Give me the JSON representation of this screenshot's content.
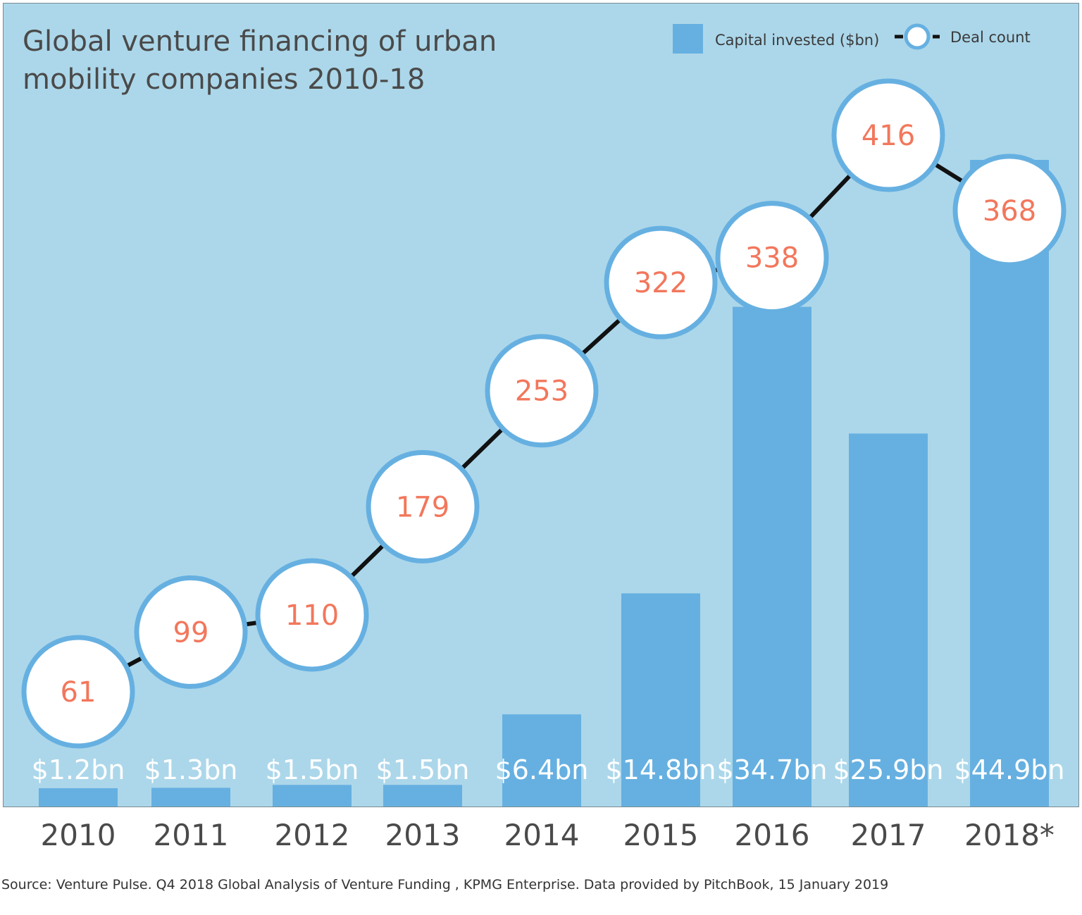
{
  "title_lines": [
    "Global venture financing of urban",
    "mobility companies 2010-18"
  ],
  "legend": {
    "bars_label": "Capital invested ($bn)",
    "line_label": "Deal count"
  },
  "source": "Source: Venture Pulse. Q4 2018 Global Analysis of Venture Funding , KPMG Enterprise. Data provided by PitchBook, 15 January 2019",
  "colors": {
    "background": "#acd7ea",
    "bar": "#66b0e1",
    "bubble_ring": "#66b0e1",
    "bubble_fill": "#ffffff",
    "bubble_text": "#f2775c",
    "line": "#111111",
    "bar_label": "#ffffff"
  },
  "chart_data": {
    "type": "bar",
    "title": "Global venture financing of urban mobility companies 2010-18",
    "categories": [
      "2010",
      "2011",
      "2012",
      "2013",
      "2014",
      "2015",
      "2016",
      "2017",
      "2018*"
    ],
    "series": [
      {
        "name": "Capital invested ($bn)",
        "type": "bar",
        "values": [
          1.2,
          1.3,
          1.5,
          1.5,
          6.4,
          14.8,
          34.7,
          25.9,
          44.9
        ],
        "labels": [
          "$1.2bn",
          "$1.3bn",
          "$1.5bn",
          "$1.5bn",
          "$6.4bn",
          "$14.8bn",
          "$34.7bn",
          "$25.9bn",
          "$44.9bn"
        ]
      },
      {
        "name": "Deal count",
        "type": "line",
        "values": [
          61,
          99,
          110,
          179,
          253,
          322,
          338,
          416,
          368
        ]
      }
    ],
    "legend_position": "top-right",
    "grid": false
  }
}
